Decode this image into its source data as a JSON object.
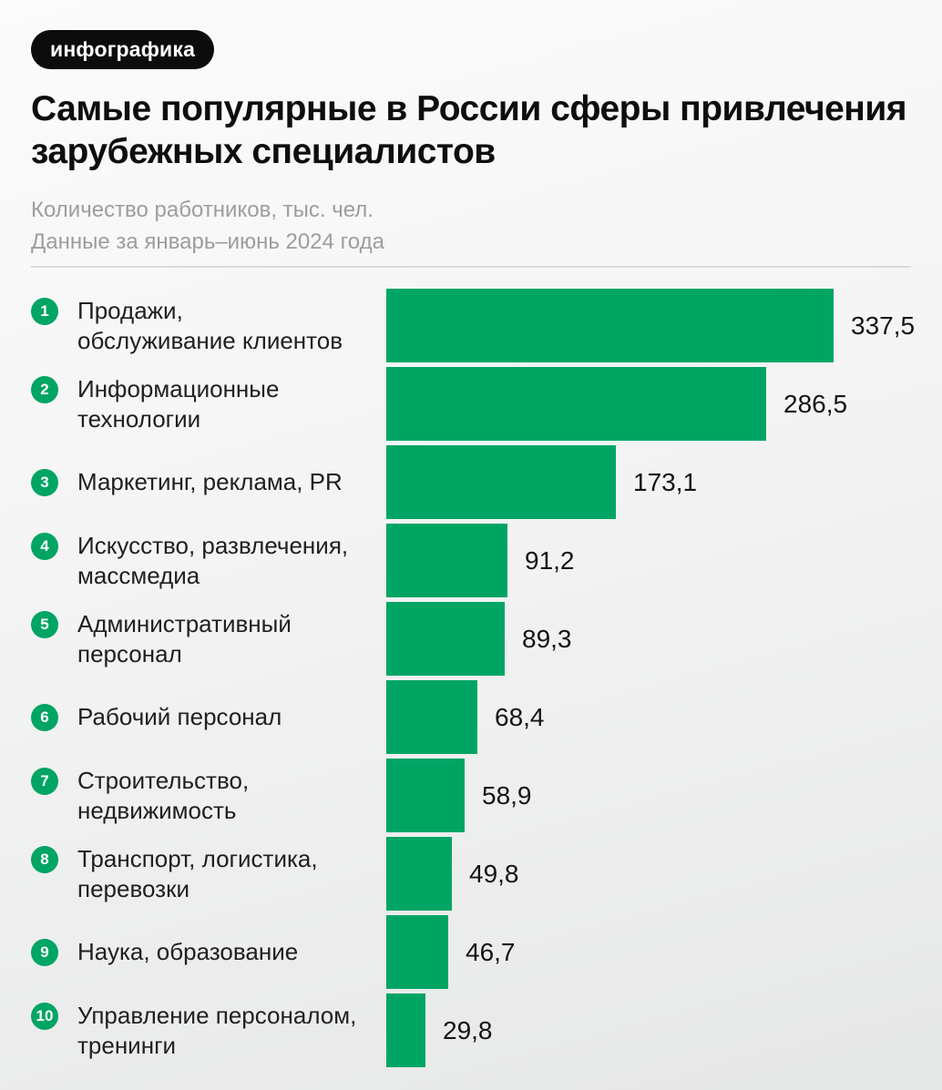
{
  "badge_label": "инфографика",
  "colors": {
    "accent_green": "#00a564",
    "badge_bg": "#0c0c0c",
    "title_text": "#0e0e0f",
    "subtitle_text": "#9b9da0",
    "background_top": "#fbfbfb",
    "background_bottom": "#e6e7e7"
  },
  "chart_data": {
    "type": "bar",
    "orientation": "horizontal",
    "title": "Самые популярные в России сферы привлечения зарубежных специалистов",
    "unit_label": "Количество работников, тыс. чел.",
    "period_label": "Данные за январь–июнь 2024 года",
    "xlim": [
      0,
      337.5
    ],
    "grid": false,
    "legend": false,
    "bar_color": "#00a564",
    "ranks": [
      "1",
      "2",
      "3",
      "4",
      "5",
      "6",
      "7",
      "8",
      "9",
      "10"
    ],
    "categories": [
      "Продажи, обслуживание клиентов",
      "Информационные технологии",
      "Маркетинг, реклама, PR",
      "Искусство, развлечения, массмедиа",
      "Административный персонал",
      "Рабочий персонал",
      "Строительство, недвижимость",
      "Транспорт, логистика, перевозки",
      "Наука, образование",
      "Управление персоналом, тренинги"
    ],
    "category_lines": [
      [
        "Продажи,",
        "обслуживание клиентов"
      ],
      [
        "Информационные",
        "технологии"
      ],
      [
        "Маркетинг, реклама, PR"
      ],
      [
        "Искусство, развлечения,",
        "массмедиа"
      ],
      [
        "Административный",
        "персонал"
      ],
      [
        "Рабочий персонал"
      ],
      [
        "Строительство,",
        "недвижимость"
      ],
      [
        "Транспорт, логистика,",
        "перевозки"
      ],
      [
        "Наука, образование"
      ],
      [
        "Управление персоналом,",
        "тренинги"
      ]
    ],
    "values": [
      337.5,
      286.5,
      173.1,
      91.2,
      89.3,
      68.4,
      58.9,
      49.8,
      46.7,
      29.8
    ],
    "value_labels": [
      "337,5",
      "286,5",
      "173,1",
      "91,2",
      "89,3",
      "68,4",
      "58,9",
      "49,8",
      "46,7",
      "29,8"
    ]
  }
}
